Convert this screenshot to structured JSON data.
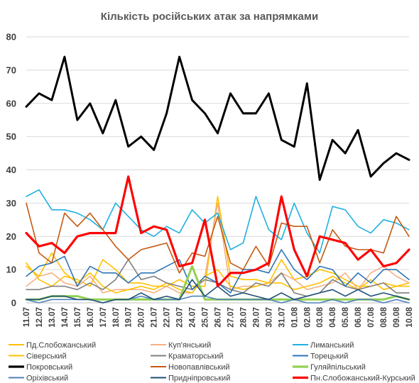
{
  "chart_data": {
    "type": "line",
    "title": "Кількість російських атак за напрямками",
    "x": [
      "11.07",
      "12.07",
      "13.07",
      "14.07",
      "15.07",
      "16.07",
      "17.07",
      "18.07",
      "19.07",
      "20.07",
      "21.07",
      "22.07",
      "23.07",
      "24.07",
      "25.07",
      "26.07",
      "27.07",
      "28.07",
      "29.07",
      "30.07",
      "31.07",
      "01.08",
      "02.08",
      "03.08",
      "04.08",
      "05.08",
      "06.08",
      "07.08",
      "08.08",
      "09.08",
      "10.08"
    ],
    "ylim": [
      0,
      80
    ],
    "yticks": [
      0,
      10,
      20,
      30,
      40,
      50,
      60,
      70,
      80
    ],
    "grid": true,
    "legend_position": "bottom",
    "series": [
      {
        "name": "Пд.Слобожанський",
        "color": "#ffc000",
        "values": [
          12,
          7,
          5,
          8,
          7,
          5,
          13,
          10,
          6,
          6,
          5,
          5,
          7,
          5,
          5,
          32,
          8,
          7,
          7,
          6,
          13,
          7,
          8,
          10,
          9,
          7,
          5,
          5,
          6,
          5,
          6
        ]
      },
      {
        "name": "Куп'янський",
        "color": "#f4b183",
        "values": [
          5,
          8,
          9,
          6,
          5,
          8,
          3,
          4,
          4,
          4,
          3,
          5,
          3,
          3,
          8,
          30,
          4,
          5,
          5,
          6,
          9,
          7,
          4,
          5,
          6,
          9,
          4,
          9,
          11,
          8,
          6
        ]
      },
      {
        "name": "Лиманський",
        "color": "#1fb0e0",
        "values": [
          32,
          34,
          28,
          28,
          27,
          25,
          22,
          30,
          26,
          22,
          20,
          23,
          21,
          28,
          24,
          27,
          16,
          18,
          32,
          22,
          19,
          30,
          21,
          15,
          29,
          28,
          23,
          21,
          25,
          24,
          22
        ]
      },
      {
        "name": "Сіверський",
        "color": "#ffc000",
        "values": [
          11,
          8,
          15,
          9,
          6,
          9,
          5,
          3,
          4,
          5,
          4,
          6,
          4,
          3,
          8,
          10,
          5,
          4,
          5,
          6,
          6,
          4,
          5,
          6,
          8,
          6,
          4,
          7,
          4,
          5,
          5
        ]
      },
      {
        "name": "Краматорський",
        "color": "#7f7f7f",
        "values": [
          4,
          4,
          5,
          5,
          4,
          6,
          4,
          7,
          13,
          7,
          8,
          6,
          5,
          4,
          7,
          6,
          4,
          3,
          6,
          5,
          9,
          3,
          2,
          3,
          7,
          5,
          4,
          5,
          6,
          3,
          3
        ]
      },
      {
        "name": "Торецький",
        "color": "#2e75b6",
        "values": [
          8,
          11,
          12,
          14,
          5,
          11,
          9,
          9,
          6,
          9,
          9,
          11,
          13,
          4,
          8,
          6,
          3,
          10,
          10,
          9,
          16,
          10,
          7,
          11,
          10,
          5,
          9,
          6,
          10,
          10,
          7
        ]
      },
      {
        "name": "Покровський",
        "color": "#000000",
        "values": [
          59,
          63,
          61,
          74,
          55,
          60,
          51,
          61,
          47,
          50,
          46,
          57,
          74,
          61,
          57,
          51,
          63,
          57,
          57,
          63,
          49,
          47,
          66,
          37,
          49,
          45,
          52,
          38,
          42,
          45,
          43
        ]
      },
      {
        "name": "Новопавлівський",
        "color": "#c55a11",
        "values": [
          30,
          15,
          12,
          27,
          23,
          27,
          22,
          17,
          13,
          16,
          17,
          18,
          9,
          15,
          14,
          26,
          12,
          10,
          17,
          11,
          24,
          23,
          23,
          12,
          22,
          17,
          16,
          16,
          15,
          26,
          20
        ]
      },
      {
        "name": "Гуляйпільський",
        "color": "#92d050",
        "values": [
          1,
          1,
          2,
          2,
          2,
          1,
          1,
          1,
          1,
          1,
          1,
          1,
          1,
          11,
          1,
          1,
          1,
          1,
          1,
          1,
          1,
          1,
          1,
          1,
          1,
          1,
          1,
          1,
          1,
          2,
          1
        ]
      },
      {
        "name": "Оріхівський",
        "color": "#4f81bd",
        "values": [
          1,
          0,
          1,
          1,
          1,
          1,
          0,
          1,
          1,
          2,
          1,
          1,
          1,
          2,
          2,
          1,
          1,
          1,
          1,
          1,
          0,
          1,
          0,
          0,
          1,
          0,
          1,
          1,
          0,
          1,
          0
        ]
      },
      {
        "name": "Придніпровський",
        "color": "#1f4e79",
        "values": [
          1,
          1,
          2,
          2,
          1,
          1,
          0,
          1,
          1,
          3,
          1,
          2,
          1,
          7,
          2,
          5,
          2,
          3,
          2,
          1,
          3,
          1,
          2,
          3,
          4,
          2,
          4,
          2,
          3,
          2,
          1
        ]
      },
      {
        "name": "Пн.Слобожанський-Курський",
        "color": "#ff0000",
        "values": [
          21,
          17,
          18,
          15,
          20,
          21,
          21,
          21,
          38,
          21,
          23,
          22,
          11,
          12,
          25,
          5,
          9,
          9,
          10,
          12,
          32,
          16,
          8,
          20,
          19,
          18,
          13,
          16,
          11,
          12,
          16
        ]
      }
    ]
  }
}
